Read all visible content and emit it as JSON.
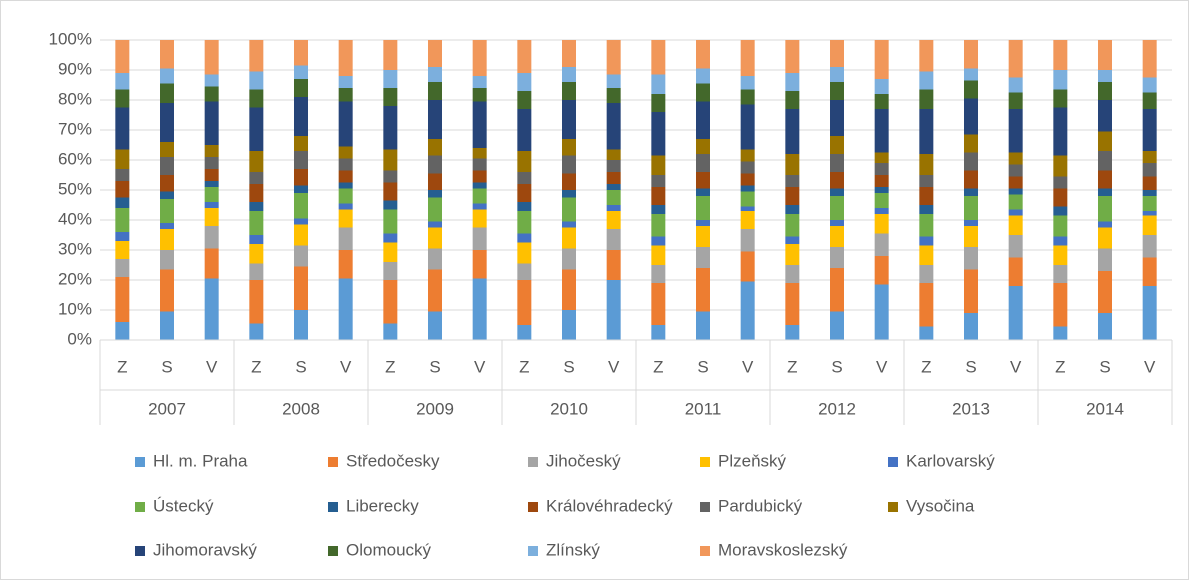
{
  "chart_data": {
    "type": "stacked_bar_100",
    "categories": [
      "Z",
      "S",
      "V",
      "Z",
      "S",
      "V",
      "Z",
      "S",
      "V",
      "Z",
      "S",
      "V",
      "Z",
      "S",
      "V",
      "Z",
      "S",
      "V",
      "Z",
      "S",
      "V",
      "Z",
      "S",
      "V"
    ],
    "groups": [
      "2007",
      "2008",
      "2009",
      "2010",
      "2011",
      "2012",
      "2013",
      "2014"
    ],
    "ylim": [
      0,
      100
    ],
    "yticks": [
      {
        "value": 0,
        "label": "0%"
      },
      {
        "value": 10,
        "label": "10%"
      },
      {
        "value": 20,
        "label": "20%"
      },
      {
        "value": 30,
        "label": "30%"
      },
      {
        "value": 40,
        "label": "40%"
      },
      {
        "value": 50,
        "label": "50%"
      },
      {
        "value": 60,
        "label": "60%"
      },
      {
        "value": 70,
        "label": "70%"
      },
      {
        "value": 80,
        "label": "80%"
      },
      {
        "value": 90,
        "label": "90%"
      },
      {
        "value": 100,
        "label": "100%"
      }
    ],
    "grid": true,
    "series": [
      {
        "name": "Hl. m. Praha",
        "color": "#5b9bd5",
        "values": [
          6,
          9.5,
          20.5,
          5.5,
          10,
          20.5,
          5.5,
          9.5,
          20.5,
          5,
          10,
          20,
          5,
          9.5,
          19.5,
          5,
          9.5,
          18.5,
          4.5,
          9,
          18,
          4.5,
          9,
          18
        ]
      },
      {
        "name": "Středočesky",
        "color": "#ed7d31",
        "values": [
          15,
          14,
          10,
          14.5,
          14.5,
          9.5,
          14.5,
          14,
          9.5,
          15,
          13.5,
          10,
          14,
          14.5,
          10,
          14,
          14.5,
          9.5,
          14.5,
          14.5,
          9.5,
          14.5,
          14,
          9.5
        ]
      },
      {
        "name": "Jihočeský",
        "color": "#a5a5a5",
        "values": [
          6,
          6.5,
          7.5,
          5.5,
          7,
          7.5,
          6,
          7,
          7.5,
          5.5,
          7,
          7,
          6,
          7,
          7.5,
          6,
          7,
          7.5,
          6,
          7.5,
          7.5,
          6,
          7.5,
          7.5
        ]
      },
      {
        "name": "Plzeňský",
        "color": "#ffc000",
        "values": [
          6,
          7,
          6,
          6.5,
          7,
          6,
          6.5,
          7,
          6,
          7,
          7,
          6,
          6.5,
          7,
          6,
          7,
          7,
          6.5,
          6.5,
          7,
          6.5,
          6.5,
          7,
          6.5
        ]
      },
      {
        "name": "Karlovarský",
        "color": "#4472c4",
        "values": [
          3,
          2,
          2,
          3,
          2,
          2,
          3,
          2,
          2,
          3,
          2,
          2,
          3,
          2,
          1.5,
          2.5,
          2,
          2,
          3,
          2,
          2,
          3,
          2,
          1.5
        ]
      },
      {
        "name": "Ústecký",
        "color": "#70ad47",
        "values": [
          8,
          8,
          5,
          8,
          8.5,
          5,
          8,
          8,
          5,
          7.5,
          8,
          5,
          7.5,
          8,
          5,
          7.5,
          8,
          5,
          7.5,
          8,
          5,
          7,
          8.5,
          5
        ]
      },
      {
        "name": "Liberecky",
        "color": "#255e91",
        "values": [
          3.5,
          2.5,
          2,
          3,
          2.5,
          2,
          3,
          2.5,
          2,
          3,
          2.5,
          2,
          3,
          2.5,
          2,
          3,
          2.5,
          2,
          3,
          2.5,
          2,
          3,
          2.5,
          2
        ]
      },
      {
        "name": "Královéhradecký",
        "color": "#9e480e",
        "values": [
          5.5,
          5.5,
          4,
          6,
          5.5,
          4,
          6,
          5.5,
          4,
          6,
          5.5,
          4,
          6,
          5.5,
          4,
          6,
          5.5,
          4,
          6,
          6,
          4,
          6,
          6,
          4.5
        ]
      },
      {
        "name": "Pardubický",
        "color": "#636363",
        "values": [
          4,
          6,
          4,
          4,
          6,
          4,
          4,
          6,
          4,
          4,
          6,
          4,
          4,
          6,
          4,
          4,
          6,
          4,
          4,
          6,
          4,
          4,
          6.5,
          4.5
        ]
      },
      {
        "name": "Vysočina",
        "color": "#997300",
        "values": [
          6.5,
          5,
          4,
          7,
          5,
          4,
          7,
          5.5,
          3.5,
          7,
          5.5,
          3.5,
          6.5,
          5,
          4,
          7,
          6,
          3.5,
          7,
          6,
          4,
          7,
          6.5,
          4
        ]
      },
      {
        "name": "Jihomoravský",
        "color": "#264478",
        "values": [
          14,
          13,
          14.5,
          14.5,
          13,
          15,
          14.5,
          13,
          15.5,
          14,
          13,
          15.5,
          14.5,
          12.5,
          15,
          15,
          12,
          14.5,
          15,
          12,
          14.5,
          16,
          10.5,
          14
        ]
      },
      {
        "name": "Olomoucký",
        "color": "#43682b",
        "values": [
          6,
          6.5,
          5,
          6,
          6,
          4.5,
          6,
          6,
          4.5,
          6,
          6,
          5,
          6,
          6,
          5,
          6,
          6,
          5,
          6.5,
          6,
          5.5,
          6,
          6,
          5.5
        ]
      },
      {
        "name": "Zlínský",
        "color": "#7cafdd",
        "values": [
          5.5,
          5,
          4,
          6,
          4.5,
          4,
          6,
          5,
          4,
          6,
          5,
          4.5,
          6.5,
          5,
          4.5,
          6,
          5,
          5,
          6,
          4,
          5,
          6.5,
          4,
          5
        ]
      },
      {
        "name": "Moravskoslezský",
        "color": "#f1975a",
        "values": [
          11,
          9.5,
          11.5,
          10.5,
          8.5,
          12,
          10,
          9,
          12,
          11,
          9,
          11.5,
          11.5,
          9.5,
          12,
          11,
          9,
          13,
          10.5,
          9.5,
          12.5,
          10,
          10,
          12.5
        ]
      }
    ]
  }
}
